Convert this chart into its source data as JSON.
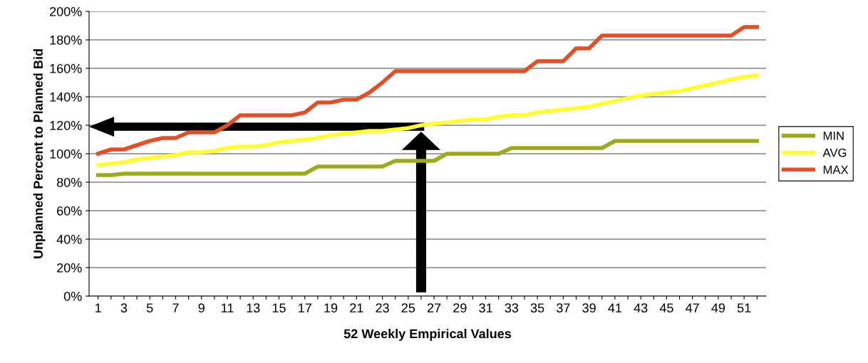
{
  "chart_data": {
    "type": "line",
    "xlabel": "52 Weekly Empirical Values",
    "ylabel": "Unplanned Percent to Planned Bid",
    "categories": [
      "1",
      null,
      "3",
      null,
      "5",
      null,
      "7",
      null,
      "9",
      null,
      "11",
      null,
      "13",
      null,
      "15",
      null,
      "17",
      null,
      "19",
      null,
      "21",
      null,
      "23",
      null,
      "25",
      null,
      "27",
      null,
      "29",
      null,
      "31",
      null,
      "33",
      null,
      "35",
      null,
      "37",
      null,
      "39",
      null,
      "41",
      null,
      "43",
      null,
      "45",
      null,
      "47",
      null,
      "49",
      null,
      "51",
      null
    ],
    "series": [
      {
        "name": "MIN",
        "color": "#9aab1e",
        "values": [
          85,
          85,
          86,
          86,
          86,
          86,
          86,
          86,
          86,
          86,
          86,
          86,
          86,
          86,
          86,
          86,
          86,
          91,
          91,
          91,
          91,
          91,
          91,
          95,
          95,
          95,
          95,
          100,
          100,
          100,
          100,
          100,
          104,
          104,
          104,
          104,
          104,
          104,
          104,
          104,
          109,
          109,
          109,
          109,
          109,
          109,
          109,
          109,
          109,
          109,
          109,
          109
        ]
      },
      {
        "name": "AVG",
        "color": "#ffff33",
        "values": [
          92,
          93,
          94,
          96,
          97,
          98,
          99,
          101,
          101,
          102,
          104,
          105,
          105,
          106,
          108,
          109,
          110,
          111,
          113,
          114,
          115,
          116,
          116,
          117,
          118,
          120,
          121,
          122,
          123,
          124,
          124,
          126,
          127,
          127,
          129,
          130,
          131,
          132,
          133,
          135,
          137,
          139,
          141,
          142,
          143,
          144,
          146,
          148,
          150,
          152,
          154,
          155
        ]
      },
      {
        "name": "MAX",
        "color": "#e0502a",
        "values": [
          100,
          103,
          103,
          106,
          109,
          111,
          111,
          115,
          115,
          115,
          120,
          127,
          127,
          127,
          127,
          127,
          129,
          136,
          136,
          138,
          138,
          143,
          150,
          158,
          158,
          158,
          158,
          158,
          158,
          158,
          158,
          158,
          158,
          158,
          165,
          165,
          165,
          174,
          174,
          183,
          183,
          183,
          183,
          183,
          183,
          183,
          183,
          183,
          183,
          183,
          189,
          189
        ]
      }
    ],
    "ylim": [
      0,
      200
    ],
    "yticks": [
      {
        "value": 0,
        "label": "0%"
      },
      {
        "value": 20,
        "label": "20%"
      },
      {
        "value": 40,
        "label": "40%"
      },
      {
        "value": 60,
        "label": "60%"
      },
      {
        "value": 80,
        "label": "80%"
      },
      {
        "value": 100,
        "label": "100%"
      },
      {
        "value": 120,
        "label": "120%"
      },
      {
        "value": 140,
        "label": "140%"
      },
      {
        "value": 160,
        "label": "160%"
      },
      {
        "value": 180,
        "label": "180%"
      },
      {
        "value": 200,
        "label": "200%"
      }
    ],
    "grid": "y",
    "legend": "right",
    "marker": "none",
    "line_style": "solid"
  }
}
